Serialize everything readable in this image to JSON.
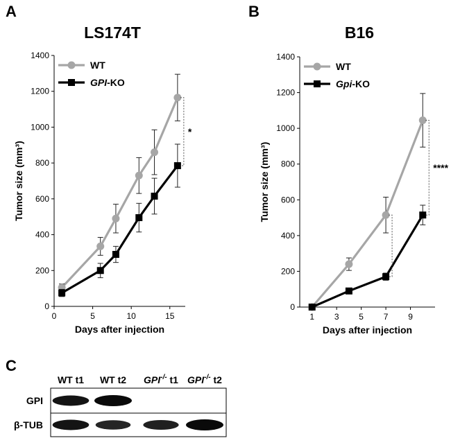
{
  "figure": {
    "panel_letters": [
      "A",
      "B",
      "C"
    ]
  },
  "chart_data": [
    {
      "type": "line",
      "title": "LS174T",
      "xlabel": "Days after injection",
      "ylabel": "Tumor size (mm³)",
      "xlim": [
        0,
        17
      ],
      "ylim": [
        0,
        1400
      ],
      "xticks": [
        0,
        5,
        10,
        15
      ],
      "yticks": [
        0,
        200,
        400,
        600,
        800,
        1000,
        1200,
        1400
      ],
      "legend_position": "top-left",
      "series": [
        {
          "name": "WT",
          "name_italic": "",
          "name_suffix": "WT",
          "color": "#a6a6a6",
          "marker": "circle",
          "x": [
            1,
            6,
            8,
            11,
            13,
            16
          ],
          "y": [
            105,
            335,
            490,
            730,
            860,
            1165
          ],
          "err": [
            20,
            50,
            80,
            100,
            125,
            130
          ]
        },
        {
          "name": "GPI-KO",
          "name_italic": "GPI",
          "name_suffix": "-KO",
          "color": "#000000",
          "marker": "square",
          "x": [
            1,
            6,
            8,
            11,
            13,
            16
          ],
          "y": [
            75,
            200,
            290,
            495,
            615,
            785
          ],
          "err": [
            20,
            40,
            45,
            80,
            100,
            120
          ]
        }
      ],
      "significance": [
        {
          "label": "*",
          "x": 16,
          "y1": 1165,
          "y2": 785
        }
      ]
    },
    {
      "type": "line",
      "title": "B16",
      "xlabel": "Days after injection",
      "ylabel": "Tumor size (mm³)",
      "xlim": [
        0,
        11
      ],
      "ylim": [
        0,
        1400
      ],
      "xticks": [
        1,
        3,
        5,
        7,
        9
      ],
      "yticks": [
        0,
        200,
        400,
        600,
        800,
        1000,
        1200,
        1400
      ],
      "legend_position": "top-left",
      "series": [
        {
          "name": "WT",
          "name_italic": "",
          "name_suffix": "WT",
          "color": "#a6a6a6",
          "marker": "circle",
          "x": [
            1,
            4,
            7,
            10
          ],
          "y": [
            0,
            240,
            515,
            1045
          ],
          "err": [
            8,
            35,
            100,
            150
          ]
        },
        {
          "name": "Gpi-KO",
          "name_italic": "Gpi",
          "name_suffix": "-KO",
          "color": "#000000",
          "marker": "square",
          "x": [
            1,
            4,
            7,
            10
          ],
          "y": [
            0,
            90,
            170,
            515
          ],
          "err": [
            8,
            15,
            20,
            55
          ]
        }
      ],
      "significance": [
        {
          "label": "****",
          "x": 10,
          "y1": 1045,
          "y2": 515
        },
        {
          "label": "",
          "x": 7,
          "y1": 515,
          "y2": 170
        }
      ]
    }
  ],
  "blot": {
    "column_labels": [
      {
        "plain": "WT t1",
        "gene": "",
        "sup": "",
        "tail": ""
      },
      {
        "plain": "WT t2",
        "gene": "",
        "sup": "",
        "tail": ""
      },
      {
        "plain": "",
        "gene": "GPI",
        "sup": "-/-",
        "tail": " t1"
      },
      {
        "plain": "",
        "gene": "GPI",
        "sup": "-/-",
        "tail": " t2"
      }
    ],
    "row_labels": [
      "GPI",
      "β-TUB"
    ],
    "band_intensity": {
      "GPI": [
        0.9,
        1.0,
        0,
        0
      ],
      "β-TUB": [
        0.9,
        0.75,
        0.8,
        1.0
      ]
    }
  }
}
